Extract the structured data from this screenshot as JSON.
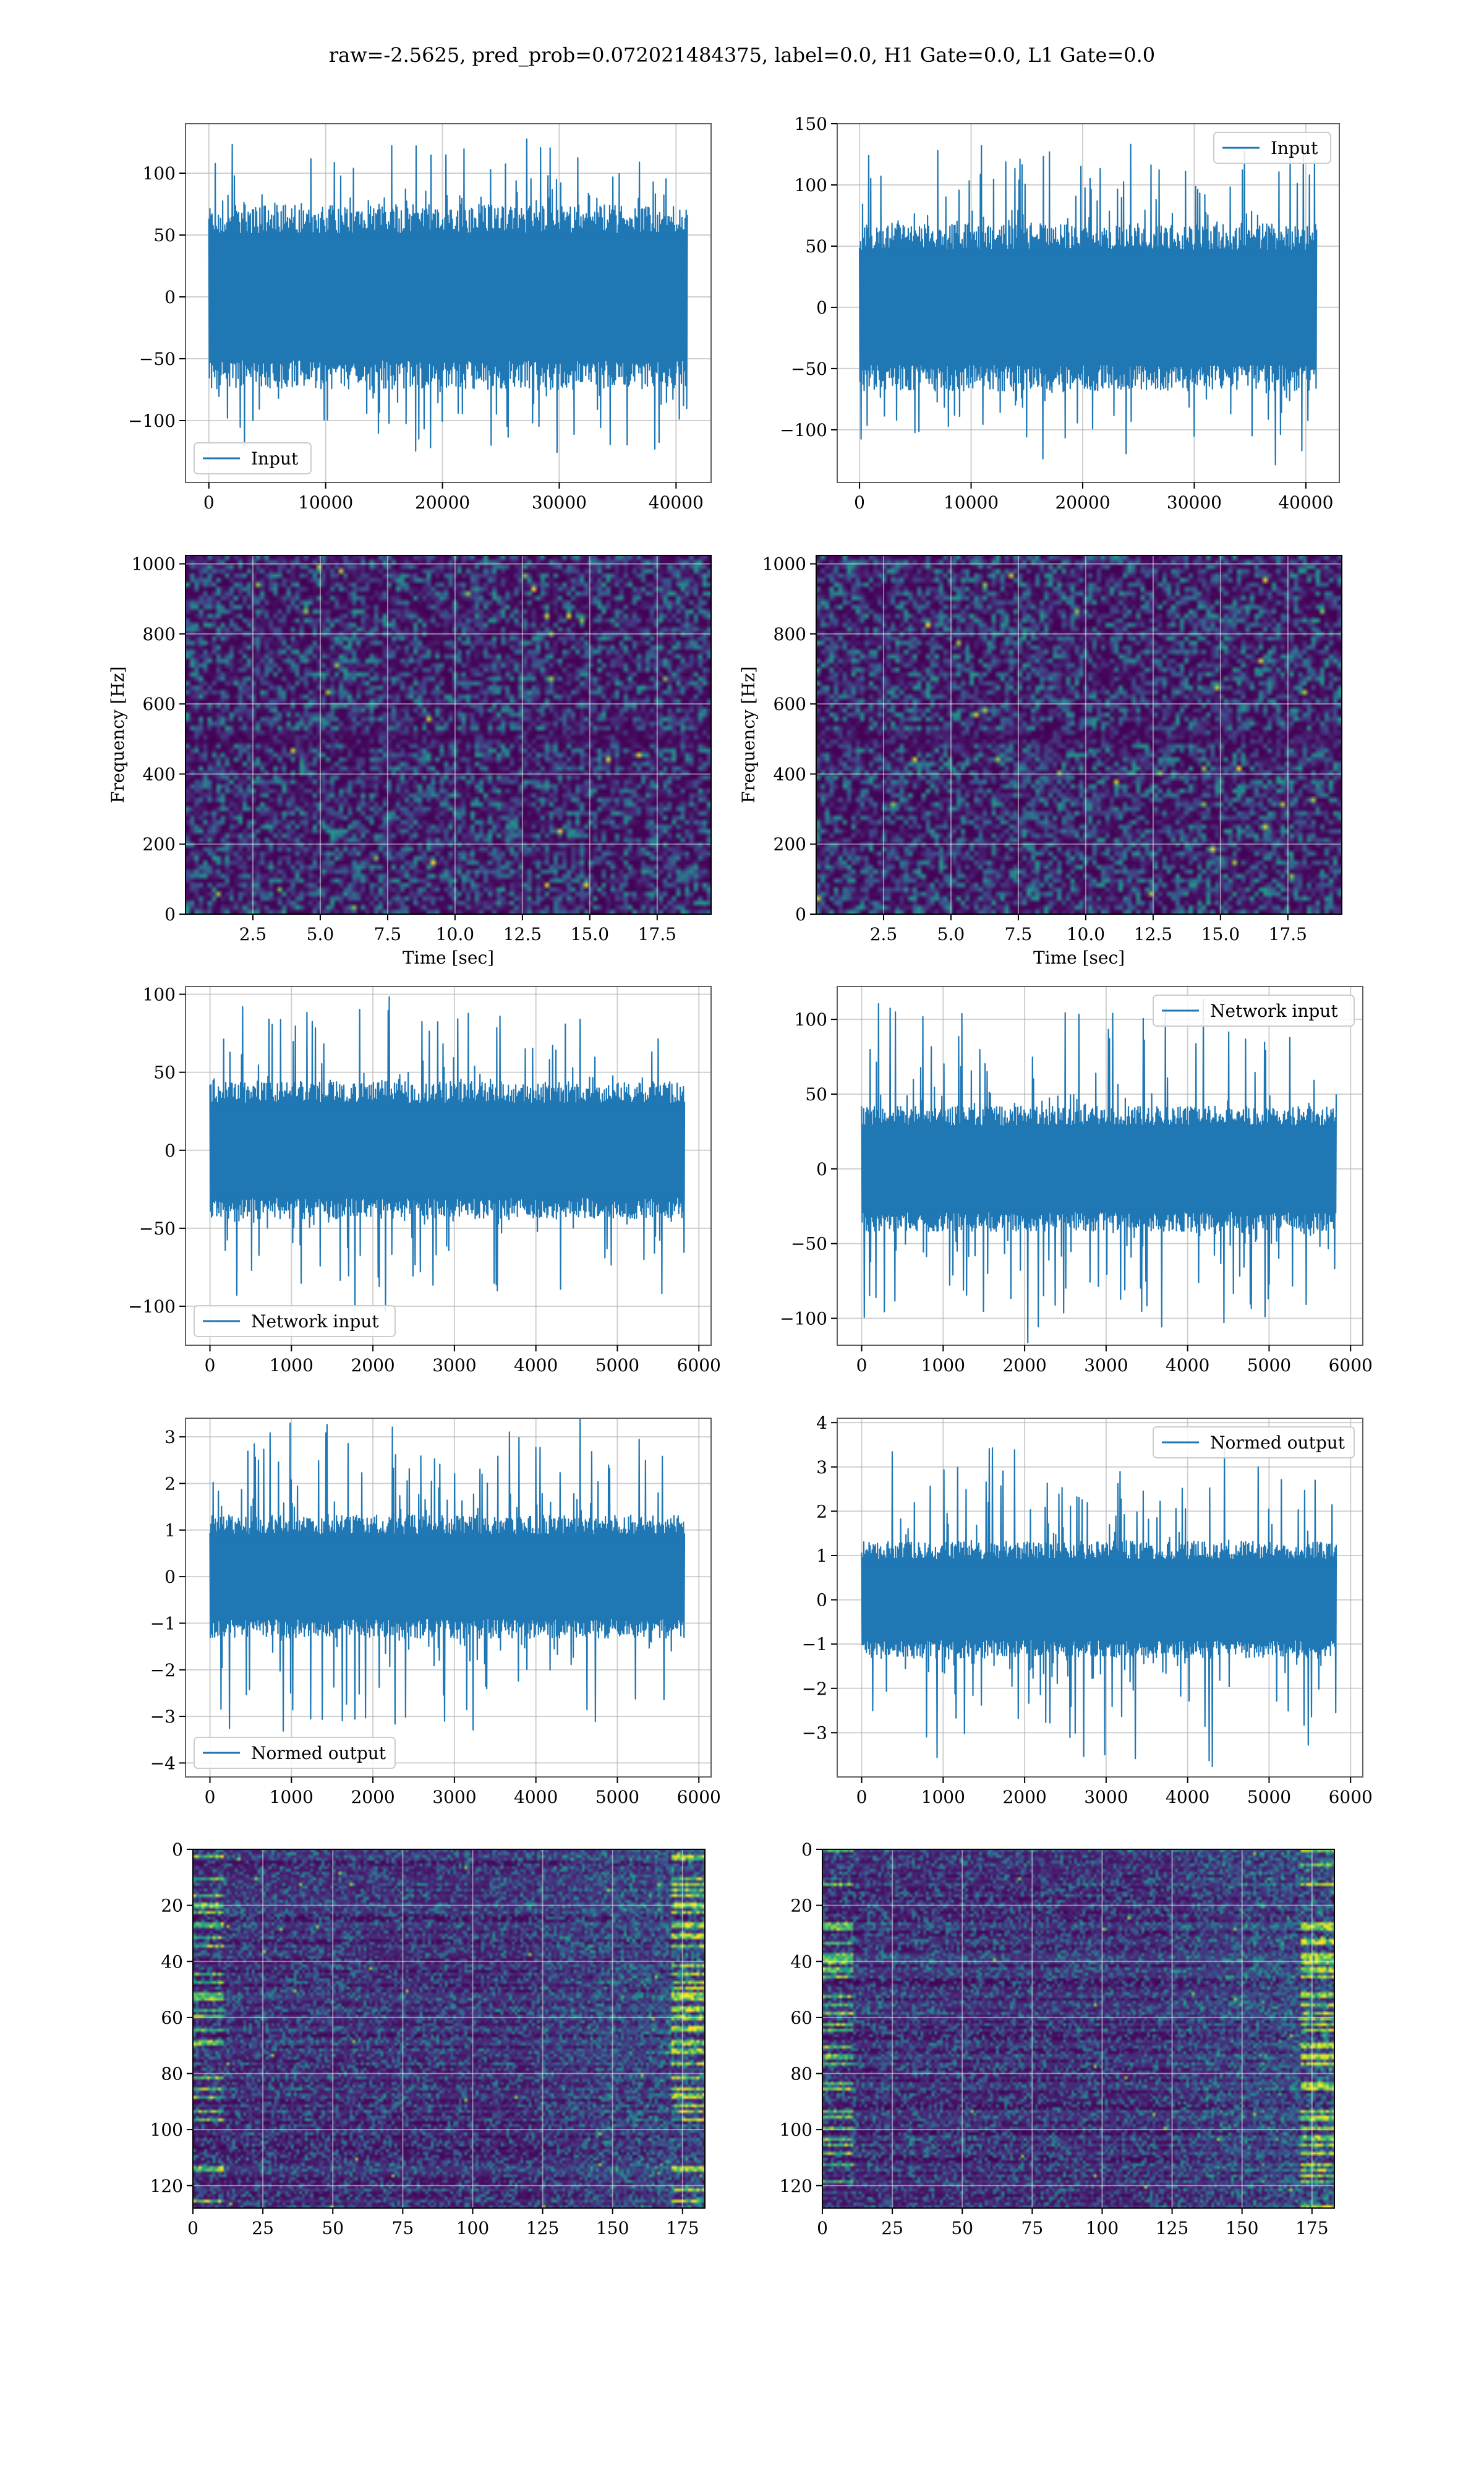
{
  "figure": {
    "title": "raw=-2.5625, pred_prob=0.072021484375, label=0.0, H1 Gate=0.0, L1 Gate=0.0",
    "background": "#ffffff",
    "series_color": "#1f77b4",
    "colormap": "viridis"
  },
  "chart_data": [
    {
      "id": "p1l",
      "type": "line",
      "legend": "Input",
      "legend_loc": "lower-left",
      "grid": true,
      "xlim": [
        -2000,
        43000
      ],
      "ylim": [
        -150,
        140
      ],
      "xticks": [
        0,
        10000,
        20000,
        30000,
        40000
      ],
      "xtick_labels": [
        "0",
        "10000",
        "20000",
        "30000",
        "40000"
      ],
      "yticks": [
        -100,
        -50,
        0,
        50,
        100
      ],
      "ytick_labels": [
        "−100",
        "−50",
        "0",
        "50",
        "100"
      ],
      "x_range": [
        0,
        40960
      ],
      "core_amplitude": 68,
      "peak_amplitude": 130,
      "seed": 11
    },
    {
      "id": "p1r",
      "type": "line",
      "legend": "Input",
      "legend_loc": "upper-right",
      "grid": true,
      "xlim": [
        -2000,
        43000
      ],
      "ylim": [
        -143,
        150
      ],
      "xticks": [
        0,
        10000,
        20000,
        30000,
        40000
      ],
      "xtick_labels": [
        "0",
        "10000",
        "20000",
        "30000",
        "40000"
      ],
      "yticks": [
        -100,
        -50,
        0,
        50,
        100,
        150
      ],
      "ytick_labels": [
        "−100",
        "−50",
        "0",
        "50",
        "100",
        "150"
      ],
      "x_range": [
        0,
        40960
      ],
      "core_amplitude": 62,
      "peak_amplitude": 135,
      "seed": 23
    },
    {
      "id": "p2l",
      "type": "heatmap",
      "grid": true,
      "xlabel": "Time [sec]",
      "ylabel": "Frequency [Hz]",
      "xlim": [
        0,
        19.5
      ],
      "ylim": [
        0,
        1024
      ],
      "xticks": [
        2.5,
        5.0,
        7.5,
        10.0,
        12.5,
        15.0,
        17.5
      ],
      "xtick_labels": [
        "2.5",
        "5.0",
        "7.5",
        "10.0",
        "12.5",
        "15.0",
        "17.5"
      ],
      "yticks": [
        0,
        200,
        400,
        600,
        800,
        1000
      ],
      "ytick_labels": [
        "0",
        "200",
        "400",
        "600",
        "800",
        "1000"
      ],
      "grid_size": [
        120,
        80
      ],
      "seed": 31
    },
    {
      "id": "p2r",
      "type": "heatmap",
      "grid": true,
      "xlabel": "Time [sec]",
      "ylabel": "Frequency [Hz]",
      "xlim": [
        0,
        19.5
      ],
      "ylim": [
        0,
        1024
      ],
      "xticks": [
        2.5,
        5.0,
        7.5,
        10.0,
        12.5,
        15.0,
        17.5
      ],
      "xtick_labels": [
        "2.5",
        "5.0",
        "7.5",
        "10.0",
        "12.5",
        "15.0",
        "17.5"
      ],
      "yticks": [
        0,
        200,
        400,
        600,
        800,
        1000
      ],
      "ytick_labels": [
        "0",
        "200",
        "400",
        "600",
        "800",
        "1000"
      ],
      "grid_size": [
        120,
        80
      ],
      "seed": 37
    },
    {
      "id": "p3l",
      "type": "line",
      "legend": "Network input",
      "legend_loc": "lower-left",
      "grid": true,
      "xlim": [
        -300,
        6150
      ],
      "ylim": [
        -125,
        105
      ],
      "xticks": [
        0,
        1000,
        2000,
        3000,
        4000,
        5000,
        6000
      ],
      "xtick_labels": [
        "0",
        "1000",
        "2000",
        "3000",
        "4000",
        "5000",
        "6000"
      ],
      "yticks": [
        -100,
        -50,
        0,
        50,
        100
      ],
      "ytick_labels": [
        "−100",
        "−50",
        "0",
        "50",
        "100"
      ],
      "x_range": [
        0,
        5824
      ],
      "core_amplitude": 40,
      "peak_amplitude": 100,
      "seed": 41
    },
    {
      "id": "p3r",
      "type": "line",
      "legend": "Network input",
      "legend_loc": "upper-right",
      "grid": true,
      "xlim": [
        -300,
        6150
      ],
      "ylim": [
        -118,
        122
      ],
      "xticks": [
        0,
        1000,
        2000,
        3000,
        4000,
        5000,
        6000
      ],
      "xtick_labels": [
        "0",
        "1000",
        "2000",
        "3000",
        "4000",
        "5000",
        "6000"
      ],
      "yticks": [
        -100,
        -50,
        0,
        50,
        100
      ],
      "ytick_labels": [
        "−100",
        "−50",
        "0",
        "50",
        "100"
      ],
      "x_range": [
        0,
        5824
      ],
      "core_amplitude": 38,
      "peak_amplitude": 115,
      "seed": 43
    },
    {
      "id": "p4l",
      "type": "line",
      "legend": "Normed output",
      "legend_loc": "lower-left",
      "grid": true,
      "xlim": [
        -300,
        6150
      ],
      "ylim": [
        -4.3,
        3.4
      ],
      "xticks": [
        0,
        1000,
        2000,
        3000,
        4000,
        5000,
        6000
      ],
      "xtick_labels": [
        "0",
        "1000",
        "2000",
        "3000",
        "4000",
        "5000",
        "6000"
      ],
      "yticks": [
        -4,
        -3,
        -2,
        -1,
        0,
        1,
        2,
        3
      ],
      "ytick_labels": [
        "−4",
        "−3",
        "−2",
        "−1",
        "0",
        "1",
        "2",
        "3"
      ],
      "x_range": [
        0,
        5824
      ],
      "core_amplitude": 1.2,
      "peak_amplitude": 3.5,
      "seed": 53
    },
    {
      "id": "p4r",
      "type": "line",
      "legend": "Normed output",
      "legend_loc": "upper-right",
      "grid": true,
      "xlim": [
        -300,
        6150
      ],
      "ylim": [
        -4.0,
        4.1
      ],
      "xticks": [
        0,
        1000,
        2000,
        3000,
        4000,
        5000,
        6000
      ],
      "xtick_labels": [
        "0",
        "1000",
        "2000",
        "3000",
        "4000",
        "5000",
        "6000"
      ],
      "yticks": [
        -3,
        -2,
        -1,
        0,
        1,
        2,
        3,
        4
      ],
      "ytick_labels": [
        "−3",
        "−2",
        "−1",
        "0",
        "1",
        "2",
        "3",
        "4"
      ],
      "x_range": [
        0,
        5824
      ],
      "core_amplitude": 1.2,
      "peak_amplitude": 3.7,
      "seed": 59
    },
    {
      "id": "p5l",
      "type": "heatmap",
      "grid": true,
      "xlim": [
        0,
        183
      ],
      "ylim": [
        128,
        0
      ],
      "xticks": [
        0,
        25,
        50,
        75,
        100,
        125,
        150,
        175
      ],
      "xtick_labels": [
        "0",
        "25",
        "50",
        "75",
        "100",
        "125",
        "150",
        "175"
      ],
      "yticks": [
        0,
        20,
        40,
        60,
        80,
        100,
        120
      ],
      "ytick_labels": [
        "0",
        "20",
        "40",
        "60",
        "80",
        "100",
        "120"
      ],
      "grid_size": [
        183,
        128
      ],
      "seed": 61
    },
    {
      "id": "p5r",
      "type": "heatmap",
      "grid": true,
      "xlim": [
        0,
        183
      ],
      "ylim": [
        128,
        0
      ],
      "xticks": [
        0,
        25,
        50,
        75,
        100,
        125,
        150,
        175
      ],
      "xtick_labels": [
        "0",
        "25",
        "50",
        "75",
        "100",
        "125",
        "150",
        "175"
      ],
      "yticks": [
        0,
        20,
        40,
        60,
        80,
        100,
        120
      ],
      "ytick_labels": [
        "0",
        "20",
        "40",
        "60",
        "80",
        "100",
        "120"
      ],
      "grid_size": [
        183,
        128
      ],
      "seed": 67
    }
  ]
}
